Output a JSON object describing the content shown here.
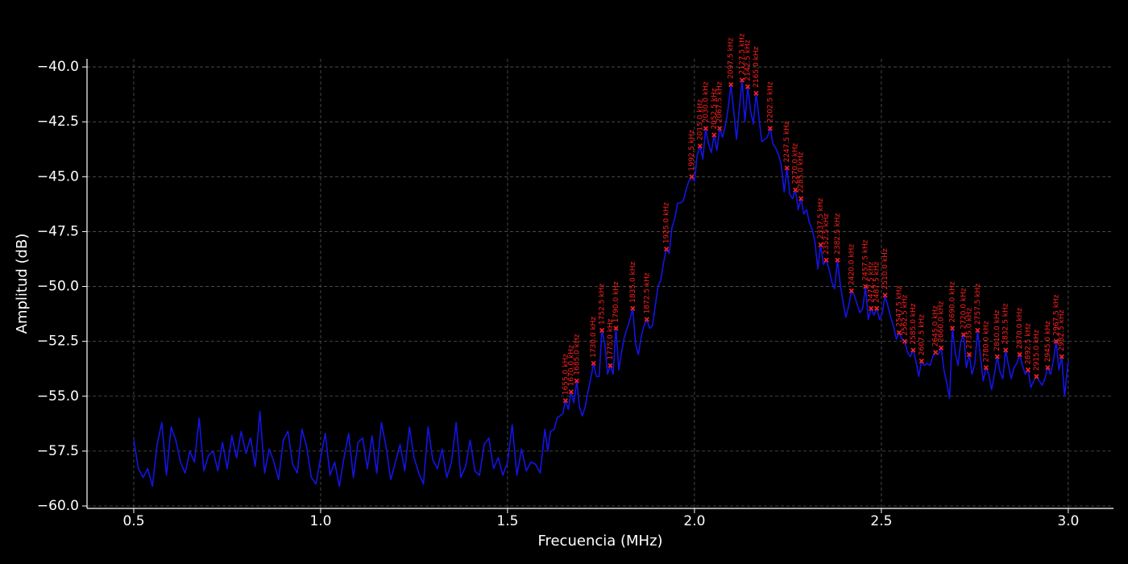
{
  "chart_data": {
    "type": "line",
    "xlabel": "Frecuencia (MHz)",
    "ylabel": "Amplitud (dB)",
    "xlim": [
      0.375,
      3.121
    ],
    "ylim": [
      -60.11,
      -39.63
    ],
    "xticks": [
      0.5,
      {
        "value": 1,
        "label": "1.0"
      },
      1.5,
      {
        "value": 2,
        "label": "2.0"
      },
      2.5,
      {
        "value": 3,
        "label": "3.0"
      }
    ],
    "yticks": [
      {
        "value": -40,
        "label": "−40.0"
      },
      {
        "value": -42.5,
        "label": "−42.5"
      },
      {
        "value": -45,
        "label": "−45.0"
      },
      {
        "value": -47.5,
        "label": "−47.5"
      },
      {
        "value": -50,
        "label": "−50.0"
      },
      {
        "value": -52.5,
        "label": "−52.5"
      },
      {
        "value": -55,
        "label": "−55.0"
      },
      {
        "value": -57.5,
        "label": "−57.5"
      },
      {
        "value": -60,
        "label": "−60.0"
      }
    ],
    "grid": true,
    "series": [
      {
        "color": "#1414e6",
        "x": [
          0.5,
          0.5125,
          0.525,
          0.5375,
          0.55,
          0.5625,
          0.575,
          0.5875,
          0.6,
          0.6125,
          0.625,
          0.6375,
          0.65,
          0.6625,
          0.675,
          0.6875,
          0.7,
          0.7125,
          0.725,
          0.7375,
          0.75,
          0.7625,
          0.775,
          0.7875,
          0.8,
          0.8125,
          0.825,
          0.8375,
          0.85,
          0.8625,
          0.875,
          0.8875,
          0.9,
          0.9125,
          0.925,
          0.9375,
          0.95,
          0.9625,
          0.975,
          0.9875,
          1.0,
          1.0125,
          1.025,
          1.0375,
          1.05,
          1.0625,
          1.075,
          1.0875,
          1.1,
          1.1125,
          1.125,
          1.1375,
          1.15,
          1.1625,
          1.175,
          1.1875,
          1.2,
          1.2125,
          1.225,
          1.2375,
          1.25,
          1.2625,
          1.275,
          1.2875,
          1.3,
          1.3125,
          1.325,
          1.3375,
          1.35,
          1.3625,
          1.375,
          1.3875,
          1.4,
          1.4125,
          1.425,
          1.4375,
          1.45,
          1.4625,
          1.475,
          1.4875,
          1.5,
          1.5125,
          1.525,
          1.5375,
          1.55,
          1.5625,
          1.575,
          1.5875,
          1.6,
          1.6075,
          1.615,
          1.625,
          1.6325,
          1.64,
          1.6475,
          1.655,
          1.6625,
          1.67,
          1.6775,
          1.685,
          1.6925,
          1.7,
          1.7075,
          1.715,
          1.7225,
          1.73,
          1.7375,
          1.745,
          1.7525,
          1.76,
          1.7675,
          1.775,
          1.7825,
          1.79,
          1.7975,
          1.805,
          1.8125,
          1.82,
          1.8275,
          1.835,
          1.8425,
          1.85,
          1.8575,
          1.865,
          1.8725,
          1.88,
          1.8875,
          1.895,
          1.9025,
          1.91,
          1.9175,
          1.925,
          1.9325,
          1.94,
          1.9475,
          1.955,
          1.9625,
          1.97,
          1.9775,
          1.985,
          1.9925,
          2.0,
          2.0075,
          2.015,
          2.0225,
          2.03,
          2.0375,
          2.045,
          2.0525,
          2.06,
          2.0675,
          2.075,
          2.0825,
          2.09,
          2.0975,
          2.105,
          2.1125,
          2.12,
          2.1275,
          2.135,
          2.1425,
          2.15,
          2.1575,
          2.165,
          2.1725,
          2.18,
          2.1875,
          2.195,
          2.2025,
          2.21,
          2.2175,
          2.225,
          2.2325,
          2.24,
          2.2475,
          2.255,
          2.2625,
          2.27,
          2.2775,
          2.285,
          2.2925,
          2.3,
          2.3075,
          2.315,
          2.3225,
          2.33,
          2.3375,
          2.345,
          2.3525,
          2.36,
          2.3675,
          2.375,
          2.3825,
          2.39,
          2.3975,
          2.405,
          2.4125,
          2.42,
          2.4275,
          2.435,
          2.4425,
          2.45,
          2.4575,
          2.465,
          2.4725,
          2.48,
          2.4875,
          2.495,
          2.5025,
          2.51,
          2.5175,
          2.525,
          2.5325,
          2.54,
          2.5475,
          2.555,
          2.5625,
          2.57,
          2.5775,
          2.585,
          2.5925,
          2.6,
          2.6075,
          2.615,
          2.6225,
          2.63,
          2.6375,
          2.645,
          2.6525,
          2.66,
          2.6675,
          2.675,
          2.6825,
          2.69,
          2.6975,
          2.705,
          2.7125,
          2.72,
          2.7275,
          2.735,
          2.7425,
          2.75,
          2.7575,
          2.765,
          2.7725,
          2.78,
          2.7875,
          2.795,
          2.8025,
          2.81,
          2.8175,
          2.825,
          2.8325,
          2.84,
          2.8475,
          2.855,
          2.8625,
          2.87,
          2.8775,
          2.885,
          2.8925,
          2.9,
          2.9075,
          2.915,
          2.9225,
          2.93,
          2.9375,
          2.945,
          2.9525,
          2.96,
          2.9675,
          2.975,
          2.9825,
          2.99,
          3.0
        ],
        "values": [
          -57.0,
          -58.3,
          -58.7,
          -58.3,
          -59.1,
          -57.2,
          -56.2,
          -58.6,
          -56.4,
          -57.0,
          -58.0,
          -58.5,
          -57.5,
          -58.0,
          -56.0,
          -58.4,
          -57.7,
          -57.5,
          -58.4,
          -57.1,
          -58.3,
          -56.8,
          -57.8,
          -56.6,
          -57.6,
          -56.9,
          -58.2,
          -55.7,
          -58.5,
          -57.4,
          -58.0,
          -58.8,
          -57.0,
          -56.6,
          -58.1,
          -58.5,
          -56.5,
          -57.3,
          -58.7,
          -59.0,
          -57.8,
          -56.7,
          -58.6,
          -58.0,
          -59.1,
          -57.8,
          -56.7,
          -58.7,
          -57.1,
          -56.9,
          -58.3,
          -56.8,
          -58.5,
          -56.2,
          -57.3,
          -58.8,
          -58.0,
          -57.2,
          -58.4,
          -56.4,
          -57.8,
          -58.5,
          -59.0,
          -56.4,
          -57.9,
          -58.3,
          -57.4,
          -58.7,
          -58.0,
          -56.2,
          -58.7,
          -58.2,
          -57.0,
          -58.4,
          -58.6,
          -57.2,
          -56.9,
          -58.3,
          -57.8,
          -58.6,
          -58.0,
          -56.3,
          -58.6,
          -57.4,
          -58.4,
          -58.0,
          -58.1,
          -58.5,
          -56.5,
          -57.5,
          -56.6,
          -56.5,
          -56.0,
          -55.9,
          -55.8,
          -55.2,
          -55.6,
          -54.8,
          -55.3,
          -54.3,
          -55.5,
          -55.9,
          -55.5,
          -54.8,
          -54.2,
          -53.5,
          -54.1,
          -54.1,
          -52.0,
          -52.6,
          -54.0,
          -53.6,
          -54.0,
          -51.9,
          -53.8,
          -53.0,
          -52.3,
          -51.9,
          -51.5,
          -51.0,
          -52.6,
          -53.1,
          -52.3,
          -51.8,
          -51.5,
          -51.9,
          -51.8,
          -50.9,
          -50.0,
          -49.7,
          -48.9,
          -48.3,
          -48.5,
          -47.3,
          -46.9,
          -46.2,
          -46.2,
          -46.1,
          -45.6,
          -45.2,
          -45.0,
          -45.2,
          -44.0,
          -43.6,
          -44.2,
          -42.8,
          -43.5,
          -43.9,
          -43.1,
          -43.8,
          -42.8,
          -43.2,
          -42.7,
          -41.9,
          -40.8,
          -42.0,
          -43.3,
          -41.9,
          -40.6,
          -42.5,
          -40.9,
          -42.0,
          -42.6,
          -41.2,
          -42.3,
          -43.4,
          -43.3,
          -43.2,
          -42.8,
          -43.5,
          -43.7,
          -44.0,
          -44.5,
          -45.7,
          -44.6,
          -45.8,
          -46.0,
          -45.6,
          -46.5,
          -46.0,
          -46.7,
          -46.5,
          -47.1,
          -47.4,
          -48.0,
          -49.2,
          -48.1,
          -49.0,
          -48.8,
          -49.2,
          -49.8,
          -50.1,
          -48.8,
          -49.9,
          -50.7,
          -51.4,
          -50.9,
          -50.2,
          -50.4,
          -50.8,
          -51.2,
          -51.0,
          -50.0,
          -51.5,
          -51.0,
          -51.3,
          -51.0,
          -51.5,
          -51.2,
          -50.4,
          -50.9,
          -51.4,
          -51.8,
          -52.4,
          -52.1,
          -52.4,
          -52.5,
          -53.0,
          -53.2,
          -52.9,
          -53.4,
          -54.1,
          -53.4,
          -53.6,
          -53.5,
          -53.6,
          -53.2,
          -53.0,
          -53.1,
          -52.8,
          -53.8,
          -54.4,
          -55.1,
          -51.9,
          -53.0,
          -53.6,
          -52.5,
          -52.2,
          -53.7,
          -53.1,
          -54.0,
          -53.5,
          -52.0,
          -53.2,
          -54.3,
          -53.7,
          -54.0,
          -54.7,
          -54.0,
          -53.2,
          -53.9,
          -54.2,
          -52.9,
          -53.6,
          -54.2,
          -53.7,
          -53.5,
          -53.1,
          -53.6,
          -54.0,
          -53.8,
          -54.6,
          -54.3,
          -54.1,
          -54.3,
          -54.5,
          -54.2,
          -53.7,
          -54.0,
          -53.4,
          -52.5,
          -53.8,
          -53.2,
          -55.0,
          -53.4
        ]
      }
    ],
    "peaks": {
      "color": "#ff2020",
      "x": [
        1.655,
        1.67,
        1.685,
        1.73,
        1.7525,
        1.775,
        1.79,
        1.835,
        1.8725,
        1.925,
        1.9925,
        2.015,
        2.03,
        2.0525,
        2.0675,
        2.0975,
        2.1275,
        2.1425,
        2.165,
        2.2025,
        2.2475,
        2.27,
        2.285,
        2.3375,
        2.3525,
        2.3825,
        2.42,
        2.4575,
        2.4725,
        2.4875,
        2.51,
        2.5475,
        2.5625,
        2.585,
        2.6075,
        2.645,
        2.66,
        2.69,
        2.72,
        2.735,
        2.7575,
        2.78,
        2.81,
        2.8325,
        2.87,
        2.8925,
        2.915,
        2.945,
        2.9675,
        2.9825
      ],
      "values": [
        -55.2,
        -54.8,
        -54.3,
        -53.5,
        -52.0,
        -53.6,
        -51.9,
        -51.0,
        -51.5,
        -48.3,
        -45.0,
        -43.6,
        -42.8,
        -43.1,
        -42.8,
        -40.8,
        -40.6,
        -40.9,
        -41.2,
        -42.8,
        -44.6,
        -45.6,
        -46.0,
        -48.1,
        -48.8,
        -48.8,
        -50.2,
        -50.0,
        -51.0,
        -51.0,
        -50.4,
        -52.1,
        -52.5,
        -52.9,
        -53.4,
        -53.0,
        -52.8,
        -51.9,
        -52.2,
        -53.1,
        -52.0,
        -53.7,
        -53.2,
        -52.9,
        -53.1,
        -53.8,
        -54.1,
        -53.7,
        -52.5,
        -53.2
      ],
      "labels": [
        "1655.0 kHz",
        "1670.0 kHz",
        "1685.0 kHz",
        "1730.0 kHz",
        "1752.5 kHz",
        "1775.0 kHz",
        "1790.0 kHz",
        "1835.0 kHz",
        "1872.5 kHz",
        "1925.0 kHz",
        "1992.5 kHz",
        "2015.0 kHz",
        "2030.0 kHz",
        "2052.5 kHz",
        "2067.5 kHz",
        "2097.5 kHz",
        "2127.5 kHz",
        "2142.5 kHz",
        "2165.0 kHz",
        "2202.5 kHz",
        "2247.5 kHz",
        "2270.0 kHz",
        "2285.0 kHz",
        "2337.5 kHz",
        "2352.5 kHz",
        "2382.5 kHz",
        "2420.0 kHz",
        "2457.5 kHz",
        "2472.5 kHz",
        "2487.5 kHz",
        "2510.0 kHz",
        "2547.5 kHz",
        "2562.5 kHz",
        "2585.0 kHz",
        "2607.5 kHz",
        "2645.0 kHz",
        "2660.0 kHz",
        "2690.0 kHz",
        "2720.0 kHz",
        "2735.0 kHz",
        "2757.5 kHz",
        "2780.0 kHz",
        "2810.0 kHz",
        "2832.5 kHz",
        "2870.0 kHz",
        "2892.5 kHz",
        "2915.0 kHz",
        "2945.0 kHz",
        "2967.5 kHz",
        "2982.5 kHz"
      ]
    }
  }
}
